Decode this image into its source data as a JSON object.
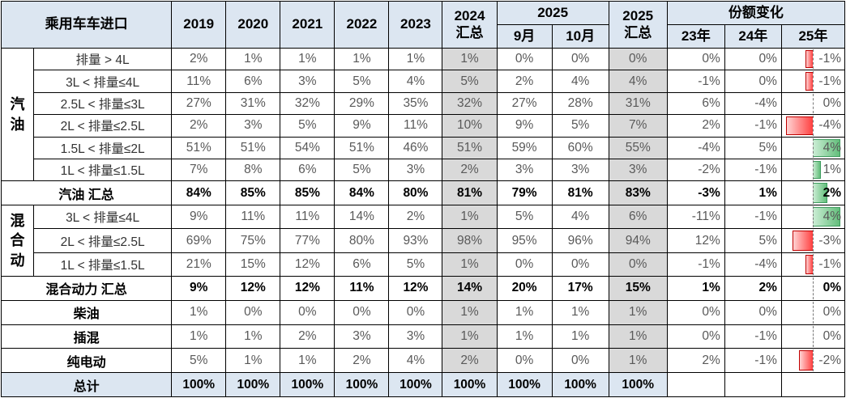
{
  "colors": {
    "header_bg": "#dce6f1",
    "summary_col_bg": "#d9d9d9",
    "total_row_bg": "#dce6f1",
    "bar_positive": "#63be7b",
    "bar_negative": "#ff4040",
    "text_normal": "#595959"
  },
  "chart_data": {
    "type": "table",
    "title": "乘用车车进口",
    "header": {
      "title": "乘用车车进口",
      "years": [
        "2019",
        "2020",
        "2021",
        "2022",
        "2023"
      ],
      "sum2024": [
        "2024",
        "汇总"
      ],
      "group2025": "2025",
      "months": [
        "9月",
        "10月"
      ],
      "sum2025": [
        "2025",
        "汇总"
      ],
      "share_change": "份额变化",
      "share_cols": [
        "23年",
        "24年",
        "25年"
      ]
    },
    "columns": [
      "2019",
      "2020",
      "2021",
      "2022",
      "2023",
      "2024 汇总",
      "2025 9月",
      "2025 10月",
      "2025 汇总",
      "23年",
      "24年",
      "25年"
    ],
    "rows": [
      {
        "group": "汽油",
        "group_rows": 6,
        "label": "排量 > 4L",
        "values": [
          "2%",
          "1%",
          "1%",
          "1%",
          "1%",
          "1%",
          "0%",
          "0%",
          "0%",
          "0%",
          "0%",
          "-1%"
        ],
        "bar_value": -1
      },
      {
        "label": "3L < 排量≤4L",
        "values": [
          "11%",
          "6%",
          "3%",
          "5%",
          "4%",
          "5%",
          "2%",
          "4%",
          "4%",
          "-1%",
          "0%",
          "-1%"
        ],
        "bar_value": -1
      },
      {
        "label": "2.5L < 排量≤3L",
        "values": [
          "27%",
          "31%",
          "32%",
          "29%",
          "35%",
          "32%",
          "27%",
          "28%",
          "31%",
          "6%",
          "-4%",
          "0%"
        ],
        "bar_value": 0
      },
      {
        "label": "2L < 排量≤2.5L",
        "values": [
          "2%",
          "3%",
          "5%",
          "9%",
          "11%",
          "10%",
          "9%",
          "5%",
          "7%",
          "2%",
          "-1%",
          "-4%"
        ],
        "bar_value": -4
      },
      {
        "label": "1.5L < 排量≤2L",
        "values": [
          "51%",
          "51%",
          "54%",
          "51%",
          "46%",
          "51%",
          "59%",
          "60%",
          "55%",
          "-4%",
          "5%",
          "4%"
        ],
        "bar_value": 4
      },
      {
        "label": "1L < 排量≤1.5L",
        "values": [
          "7%",
          "8%",
          "6%",
          "5%",
          "3%",
          "2%",
          "3%",
          "3%",
          "3%",
          "-2%",
          "-1%",
          "1%"
        ],
        "bar_value": 1
      },
      {
        "label": "汽油 汇总",
        "full_span": true,
        "label_bold": true,
        "values_bold": true,
        "values": [
          "84%",
          "85%",
          "85%",
          "84%",
          "80%",
          "81%",
          "79%",
          "81%",
          "83%",
          "-3%",
          "1%",
          "2%"
        ],
        "bar_value": 2
      },
      {
        "group": "混合动",
        "group_rows": 3,
        "label": "3L < 排量≤4L",
        "values": [
          "9%",
          "11%",
          "11%",
          "14%",
          "2%",
          "1%",
          "5%",
          "4%",
          "6%",
          "-11%",
          "-1%",
          "4%"
        ],
        "bar_value": 4
      },
      {
        "label": "2L < 排量≤2.5L",
        "values": [
          "69%",
          "75%",
          "77%",
          "80%",
          "93%",
          "98%",
          "95%",
          "96%",
          "94%",
          "12%",
          "5%",
          "-3%"
        ],
        "bar_value": -3
      },
      {
        "label": "1L < 排量≤1.5L",
        "values": [
          "21%",
          "15%",
          "12%",
          "6%",
          "5%",
          "1%",
          "0%",
          "0%",
          "0%",
          "-1%",
          "-4%",
          "-1%"
        ],
        "bar_value": -1
      },
      {
        "label": "混合动力 汇总",
        "full_span": true,
        "label_bold": true,
        "values_bold": true,
        "values": [
          "9%",
          "12%",
          "12%",
          "11%",
          "12%",
          "14%",
          "20%",
          "17%",
          "15%",
          "1%",
          "2%",
          "0%"
        ],
        "bar_value": 0
      },
      {
        "label": "柴油",
        "full_span": true,
        "label_bold": true,
        "values": [
          "1%",
          "0%",
          "0%",
          "0%",
          "0%",
          "1%",
          "1%",
          "1%",
          "1%",
          "0%",
          "0%",
          "0%"
        ],
        "bar_value": 0
      },
      {
        "label": "插混",
        "full_span": true,
        "label_bold": true,
        "values": [
          "1%",
          "1%",
          "2%",
          "3%",
          "3%",
          "1%",
          "1%",
          "1%",
          "1%",
          "0%",
          "-1%",
          "0%"
        ],
        "bar_value": 0
      },
      {
        "label": "纯电动",
        "full_span": true,
        "label_bold": true,
        "values": [
          "5%",
          "1%",
          "1%",
          "2%",
          "4%",
          "2%",
          "0%",
          "0%",
          "1%",
          "2%",
          "-1%",
          "-2%"
        ],
        "bar_value": -2
      },
      {
        "label": "总计",
        "full_span": true,
        "label_bold": true,
        "values_bold": true,
        "total": true,
        "values": [
          "100%",
          "100%",
          "100%",
          "100%",
          "100%",
          "100%",
          "100%",
          "100%",
          "100%",
          "",
          "",
          ""
        ],
        "bar_value": null
      }
    ]
  }
}
